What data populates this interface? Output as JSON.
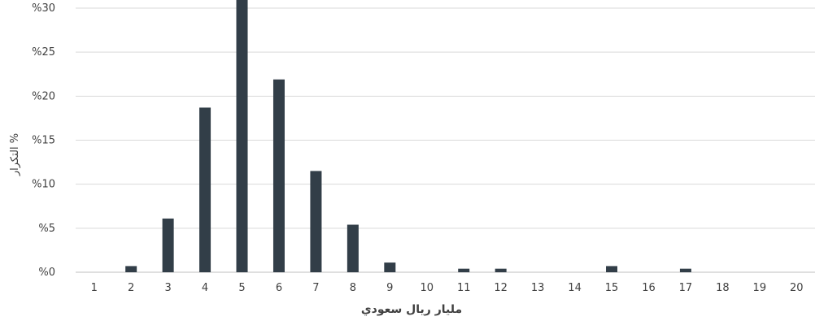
{
  "chart_data": {
    "type": "bar",
    "title": "",
    "xlabel": "مليار ريال سعودي",
    "ylabel": "التكرار %",
    "categories": [
      "1",
      "2",
      "3",
      "4",
      "5",
      "6",
      "7",
      "8",
      "9",
      "10",
      "11",
      "12",
      "13",
      "14",
      "15",
      "16",
      "17",
      "18",
      "19",
      "20"
    ],
    "values": [
      0,
      0.7,
      6.1,
      18.7,
      31.6,
      21.9,
      11.5,
      5.4,
      1.1,
      0,
      0.4,
      0.4,
      0,
      0,
      0.7,
      0,
      0.4,
      0,
      0,
      0
    ],
    "ylim": [
      0,
      30
    ],
    "y_ticks": [
      0,
      5,
      10,
      15,
      20,
      25,
      30
    ],
    "y_tick_labels": [
      "%0",
      "%5",
      "%10",
      "%15",
      "%20",
      "%25",
      "%30"
    ],
    "grid": true,
    "legend": "none",
    "bar_color": "#323e48",
    "grid_color": "#d9d9d9"
  }
}
